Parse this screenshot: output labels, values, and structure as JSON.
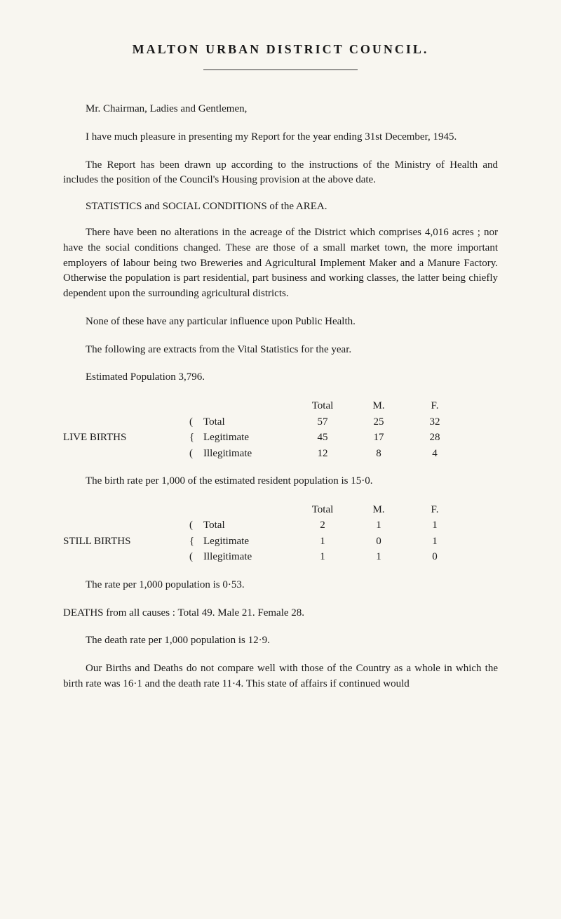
{
  "title": "MALTON  URBAN  DISTRICT  COUNCIL.",
  "p1": "Mr. Chairman, Ladies and Gentlemen,",
  "p2": "I have much pleasure in presenting my Report for the year ending 31st December, 1945.",
  "p3": "The Report has been drawn up according to the instructions of the Ministry of Health and includes the position of the Council's Housing provision at the above date.",
  "section1": "STATISTICS and SOCIAL CONDITIONS of the AREA.",
  "p4": "There have been no alterations in the acreage of the District which comprises 4,016 acres ;  nor have the social conditions changed.  These are those of a small market town, the more important employers of labour being two Breweries and Agricultural Implement Maker and a Manure Factory.  Otherwise the population is part residential, part business and working classes, the latter being chiefly dependent upon the surrounding agricultural districts.",
  "p5": "None of these have any particular influence upon Public Health.",
  "p6": "The following are extracts from the Vital Statistics for the year.",
  "p7": "Estimated Population 3,796.",
  "table1": {
    "label": "LIVE BIRTHS",
    "header": {
      "col_total": "Total",
      "col_m": "M.",
      "col_f": "F."
    },
    "rows": [
      {
        "name": "Total",
        "total": "57",
        "m": "25",
        "f": "32"
      },
      {
        "name": "Legitimate",
        "total": "45",
        "m": "17",
        "f": "28"
      },
      {
        "name": "Illegitimate",
        "total": "12",
        "m": "8",
        "f": "4"
      }
    ]
  },
  "p8": "The birth rate per 1,000 of the estimated resident population is 15·0.",
  "table2": {
    "label": "STILL BIRTHS",
    "header": {
      "col_total": "Total",
      "col_m": "M.",
      "col_f": "F."
    },
    "rows": [
      {
        "name": "Total",
        "total": "2",
        "m": "1",
        "f": "1"
      },
      {
        "name": "Legitimate",
        "total": "1",
        "m": "0",
        "f": "1"
      },
      {
        "name": "Illegitimate",
        "total": "1",
        "m": "1",
        "f": "0"
      }
    ]
  },
  "p9": "The rate per 1,000 population is 0·53.",
  "p10": "DEATHS from all causes :  Total 49.   Male 21.   Female 28.",
  "p11": "The death rate per 1,000 population is 12·9.",
  "p12": "Our Births and Deaths do not compare well with those of the Country as a whole in which the birth rate was 16·1 and the death rate 11·4.  This state of affairs if continued would"
}
